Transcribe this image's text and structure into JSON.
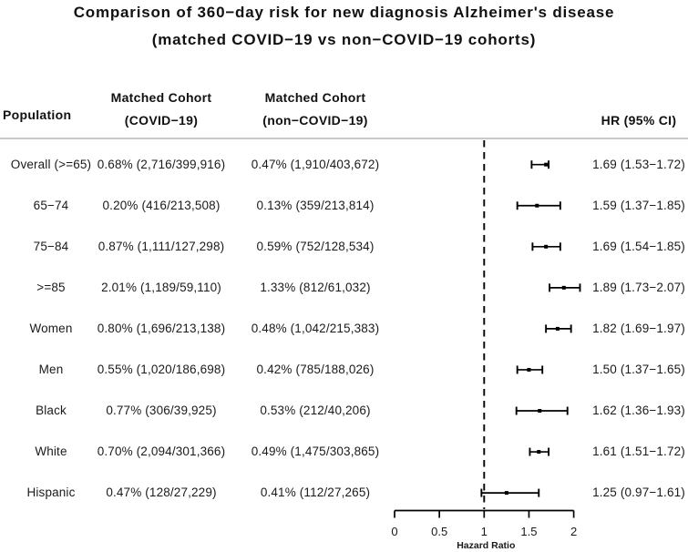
{
  "figure": {
    "title_line1": "Comparison of 360−day risk for new diagnosis Alzheimer's disease",
    "title_line2": "(matched COVID−19 vs non−COVID−19 cohorts)"
  },
  "table": {
    "headers": {
      "population": "Population",
      "covid_line1": "Matched Cohort",
      "covid_line2": "(COVID−19)",
      "noncovid_line1": "Matched Cohort",
      "noncovid_line2": "(non−COVID−19)",
      "hr": "HR (95% CI)"
    }
  },
  "chart_data": {
    "type": "forest",
    "title": "Comparison of 360−day risk for new diagnosis Alzheimer's disease (matched COVID−19 vs non−COVID−19 cohorts)",
    "xlabel": "Hazard Ratio",
    "xlim": [
      0,
      2
    ],
    "x_ticks": [
      0,
      0.5,
      1,
      1.5,
      2
    ],
    "x_tick_labels": [
      "0",
      "0.5",
      "1",
      "1.5",
      "2"
    ],
    "reference_line": 1,
    "grid": false,
    "colors": {
      "line": "#000000",
      "marker": "#000000",
      "text": "#1a1a1a",
      "separator": "#c9c9c9"
    },
    "rows": [
      {
        "population": "Overall (>=65)",
        "covid": "0.68% (2,716/399,916)",
        "noncovid": "0.47% (1,910/403,672)",
        "hr": 1.69,
        "ci_low": 1.53,
        "ci_high": 1.72,
        "hr_label": "1.69 (1.53−1.72)"
      },
      {
        "population": "65−74",
        "covid": "0.20% (416/213,508)",
        "noncovid": "0.13% (359/213,814)",
        "hr": 1.59,
        "ci_low": 1.37,
        "ci_high": 1.85,
        "hr_label": "1.59 (1.37−1.85)"
      },
      {
        "population": "75−84",
        "covid": "0.87% (1,111/127,298)",
        "noncovid": "0.59% (752/128,534)",
        "hr": 1.69,
        "ci_low": 1.54,
        "ci_high": 1.85,
        "hr_label": "1.69 (1.54−1.85)"
      },
      {
        "population": ">=85",
        "covid": "2.01% (1,189/59,110)",
        "noncovid": "1.33% (812/61,032)",
        "hr": 1.89,
        "ci_low": 1.73,
        "ci_high": 2.07,
        "hr_label": "1.89 (1.73−2.07)"
      },
      {
        "population": "Women",
        "covid": "0.80% (1,696/213,138)",
        "noncovid": "0.48% (1,042/215,383)",
        "hr": 1.82,
        "ci_low": 1.69,
        "ci_high": 1.97,
        "hr_label": "1.82 (1.69−1.97)"
      },
      {
        "population": "Men",
        "covid": "0.55% (1,020/186,698)",
        "noncovid": "0.42% (785/188,026)",
        "hr": 1.5,
        "ci_low": 1.37,
        "ci_high": 1.65,
        "hr_label": "1.50 (1.37−1.65)"
      },
      {
        "population": "Black",
        "covid": "0.77% (306/39,925)",
        "noncovid": "0.53% (212/40,206)",
        "hr": 1.62,
        "ci_low": 1.36,
        "ci_high": 1.93,
        "hr_label": "1.62 (1.36−1.93)"
      },
      {
        "population": "White",
        "covid": "0.70% (2,094/301,366)",
        "noncovid": "0.49% (1,475/303,865)",
        "hr": 1.61,
        "ci_low": 1.51,
        "ci_high": 1.72,
        "hr_label": "1.61 (1.51−1.72)"
      },
      {
        "population": "Hispanic",
        "covid": "0.47% (128/27,229)",
        "noncovid": "0.41% (112/27,265)",
        "hr": 1.25,
        "ci_low": 0.97,
        "ci_high": 1.61,
        "hr_label": "1.25 (0.97−1.61)"
      }
    ]
  }
}
